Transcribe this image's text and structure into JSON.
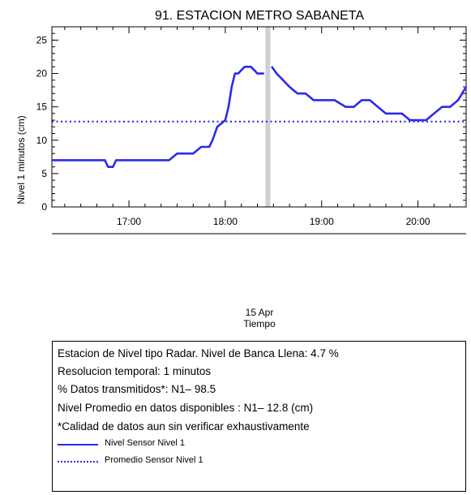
{
  "chart_data": {
    "type": "line",
    "title": "91. ESTACION METRO SABANETA",
    "ylabel": "Nivel 1 minutos (cm)",
    "xlabel": "Tiempo",
    "date_label": "15 Apr",
    "ylim": [
      0,
      27
    ],
    "yticks": [
      0,
      5,
      10,
      15,
      20,
      25
    ],
    "xlim": [
      "16:12",
      "20:30"
    ],
    "xticks": [
      "17:00",
      "18:00",
      "19:00",
      "20:00"
    ],
    "gap": [
      "18:25",
      "18:28"
    ],
    "grid": false,
    "series": [
      {
        "name": "Nivel Sensor Nivel 1",
        "style": "solid",
        "color": "#2a2aee",
        "x": [
          "16:12",
          "16:20",
          "16:30",
          "16:40",
          "16:45",
          "16:47",
          "16:50",
          "16:52",
          "16:55",
          "17:00",
          "17:05",
          "17:10",
          "17:15",
          "17:20",
          "17:25",
          "17:30",
          "17:35",
          "17:40",
          "17:45",
          "17:50",
          "17:52",
          "17:55",
          "18:00",
          "18:02",
          "18:04",
          "18:06",
          "18:08",
          "18:12",
          "18:16",
          "18:20",
          "18:24",
          "18:29",
          "18:32",
          "18:36",
          "18:40",
          "18:45",
          "18:50",
          "18:55",
          "19:00",
          "19:05",
          "19:08",
          "19:15",
          "19:20",
          "19:25",
          "19:30",
          "19:35",
          "19:40",
          "19:45",
          "19:50",
          "19:55",
          "20:00",
          "20:05",
          "20:10",
          "20:15",
          "20:20",
          "20:25",
          "20:30"
        ],
        "values": [
          7,
          7,
          7,
          7,
          7,
          6,
          6,
          7,
          7,
          7,
          7,
          7,
          7,
          7,
          7,
          8,
          8,
          8,
          9,
          9,
          10,
          12,
          13,
          15,
          18,
          20,
          20,
          21,
          21,
          20,
          20,
          21,
          20,
          19,
          18,
          17,
          17,
          16,
          16,
          16,
          16,
          15,
          15,
          16,
          16,
          15,
          14,
          14,
          14,
          13,
          13,
          13,
          14,
          15,
          15,
          16,
          18
        ]
      },
      {
        "name": "Promedio Sensor Nivel 1",
        "style": "dotted",
        "color": "#2a2aee",
        "x": [
          "16:12",
          "20:30"
        ],
        "values": [
          12.8,
          12.8
        ]
      }
    ]
  },
  "info": {
    "line1": "Estacion de Nivel tipo Radar. Nivel de Banca Llena:  4.7 %",
    "line2": "Resolucion temporal: 1 minutos",
    "line3": "% Datos transmitidos*: N1– 98.5",
    "line4": "Nivel Promedio en datos disponibles : N1– 12.8 (cm)",
    "line5": "*Calidad de datos aun sin verificar exhaustivamente"
  },
  "colors": {
    "line": "#2a2aee",
    "gap_band": "#d0d0d0",
    "axis": "#000000"
  }
}
